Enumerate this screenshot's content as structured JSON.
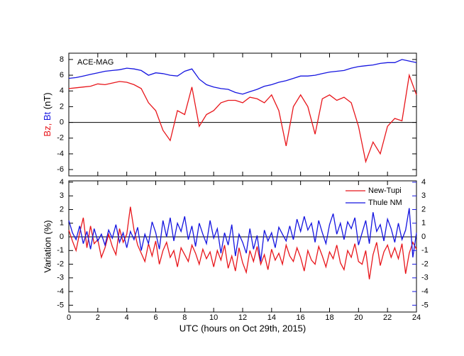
{
  "chart_data": [
    {
      "type": "line",
      "annotation": "ACE-MAG",
      "ylabel": [
        "Bz,",
        "Bt",
        "(nT)"
      ],
      "xlim": [
        0,
        24
      ],
      "xticks": [
        0,
        2,
        4,
        6,
        8,
        10,
        12,
        14,
        16,
        18,
        20,
        22,
        24
      ],
      "ylim": [
        -6.8,
        8.8
      ],
      "yticks": [
        -6,
        -4,
        -2,
        0,
        2,
        4,
        6,
        8
      ],
      "hline": 0,
      "x": [
        0,
        0.5,
        1,
        1.5,
        2,
        2.5,
        3,
        3.5,
        4,
        4.5,
        5,
        5.5,
        6,
        6.5,
        7,
        7.5,
        8,
        8.5,
        9,
        9.5,
        10,
        10.5,
        11,
        11.5,
        12,
        12.5,
        13,
        13.5,
        14,
        14.5,
        15,
        15.5,
        16,
        16.5,
        17,
        17.5,
        18,
        18.5,
        19,
        19.5,
        20,
        20.5,
        21,
        21.5,
        22,
        22.5,
        23,
        23.5,
        24
      ],
      "series": [
        {
          "color": "#e8161b",
          "values": [
            4.3,
            4.4,
            4.5,
            4.6,
            4.9,
            4.8,
            5.0,
            5.2,
            5.1,
            4.8,
            4.3,
            2.5,
            1.5,
            -1.0,
            -2.3,
            1.5,
            1.0,
            4.5,
            -0.5,
            1.0,
            1.5,
            2.5,
            2.8,
            2.8,
            2.5,
            3.2,
            3.0,
            2.5,
            3.5,
            1.5,
            -3.0,
            2.0,
            3.5,
            2.0,
            -1.5,
            3.0,
            3.5,
            2.8,
            3.2,
            2.5,
            -0.5,
            -5.0,
            -2.5,
            -4.0,
            -0.5,
            0.5,
            0.2,
            6.0,
            3.5
          ]
        },
        {
          "color": "#1515e0",
          "values": [
            5.6,
            5.7,
            5.9,
            6.1,
            6.3,
            6.5,
            6.6,
            6.7,
            6.9,
            6.8,
            6.6,
            6.0,
            6.3,
            6.2,
            6.0,
            5.9,
            6.5,
            6.8,
            5.5,
            4.8,
            4.5,
            4.3,
            4.2,
            3.8,
            3.6,
            3.9,
            4.2,
            4.6,
            4.8,
            5.1,
            5.3,
            5.6,
            5.9,
            5.9,
            6.0,
            6.2,
            6.4,
            6.5,
            6.6,
            6.9,
            7.1,
            7.2,
            7.3,
            7.5,
            7.6,
            7.6,
            8.0,
            7.8,
            7.6
          ]
        }
      ]
    },
    {
      "type": "line",
      "ylabel": "Variation (%)",
      "xlabel": "UTC (hours on Oct 29th, 2015)",
      "xlim": [
        0,
        24
      ],
      "xticks": [
        0,
        2,
        4,
        6,
        8,
        10,
        12,
        14,
        16,
        18,
        20,
        22,
        24
      ],
      "ylim": [
        -5.5,
        4.1
      ],
      "yticks": [
        -5,
        -4,
        -3,
        -2,
        -1,
        0,
        1,
        2,
        3,
        4
      ],
      "y2lim": [
        -5.5,
        4.1
      ],
      "y2ticks": [
        -5,
        -4,
        -3,
        -2,
        -1,
        0,
        1,
        2,
        3,
        4
      ],
      "hline": 0,
      "legend": "upper right",
      "x": [
        0,
        0.25,
        0.5,
        0.75,
        1,
        1.25,
        1.5,
        1.75,
        2,
        2.25,
        2.5,
        2.75,
        3,
        3.25,
        3.5,
        3.75,
        4,
        4.25,
        4.5,
        4.75,
        5,
        5.25,
        5.5,
        5.75,
        6,
        6.25,
        6.5,
        6.75,
        7,
        7.25,
        7.5,
        7.75,
        8,
        8.25,
        8.5,
        8.75,
        9,
        9.25,
        9.5,
        9.75,
        10,
        10.25,
        10.5,
        10.75,
        11,
        11.25,
        11.5,
        11.75,
        12,
        12.25,
        12.5,
        12.75,
        13,
        13.25,
        13.5,
        13.75,
        14,
        14.25,
        14.5,
        14.75,
        15,
        15.25,
        15.5,
        15.75,
        16,
        16.25,
        16.5,
        16.75,
        17,
        17.25,
        17.5,
        17.75,
        18,
        18.25,
        18.5,
        18.75,
        19,
        19.25,
        19.5,
        19.75,
        20,
        20.25,
        20.5,
        20.75,
        21,
        21.25,
        21.5,
        21.75,
        22,
        22.25,
        22.5,
        22.75,
        23,
        23.25,
        23.5,
        23.75,
        24
      ],
      "series": [
        {
          "name": "New-Tupi",
          "color": "#e8161b",
          "values": [
            0.5,
            -0.3,
            -1.0,
            0.3,
            1.4,
            -0.8,
            0.8,
            -0.5,
            -0.2,
            -1.5,
            -0.8,
            0.2,
            -0.7,
            -1.3,
            0.6,
            -0.4,
            0.2,
            2.2,
            0.5,
            -0.6,
            -1.2,
            -1.8,
            -0.5,
            -1.4,
            -0.3,
            -2.0,
            -1.0,
            -0.4,
            -1.5,
            -1.0,
            -2.2,
            -0.8,
            -1.3,
            -1.8,
            -0.6,
            -1.2,
            -2.0,
            -0.9,
            -1.6,
            -1.1,
            -2.2,
            -1.0,
            -1.7,
            -0.6,
            -2.3,
            -1.4,
            -2.5,
            -0.8,
            -1.9,
            -2.6,
            -1.0,
            -1.8,
            -0.7,
            -2.0,
            -1.3,
            -2.4,
            -0.9,
            -1.7,
            -1.2,
            -2.0,
            -0.6,
            -1.4,
            -1.8,
            -0.8,
            -1.5,
            -2.5,
            -1.0,
            -1.7,
            -2.0,
            -0.7,
            -1.4,
            -2.2,
            -1.1,
            -1.6,
            -0.6,
            -1.9,
            -2.4,
            -1.0,
            -1.5,
            -0.5,
            -1.8,
            -2.0,
            -1.0,
            -3.1,
            -1.3,
            -0.4,
            -2.1,
            -1.1,
            -0.6,
            -1.5,
            -0.8,
            -1.6,
            -0.5,
            -2.7,
            -1.2,
            -0.4,
            -0.9
          ]
        },
        {
          "name": "Thule NM",
          "color": "#1515e0",
          "axis": "y2",
          "values": [
            1.2,
            0.3,
            -0.2,
            0.8,
            -0.5,
            0.4,
            -0.9,
            0.6,
            -0.3,
            0.2,
            -0.6,
            0.5,
            -0.1,
            0.9,
            -0.4,
            0.3,
            -0.8,
            0.4,
            -0.2,
            0.7,
            -1.0,
            0.2,
            -0.5,
            1.1,
            0.3,
            -0.9,
            1.2,
            0.0,
            1.4,
            -0.3,
            1.0,
            0.4,
            1.5,
            -0.2,
            0.8,
            -0.7,
            1.0,
            0.2,
            -0.5,
            1.2,
            -0.1,
            0.6,
            -1.2,
            0.3,
            -0.6,
            0.9,
            -1.4,
            0.2,
            -0.4,
            -1.2,
            0.6,
            -0.9,
            0.1,
            -1.8,
            0.5,
            -0.3,
            0.3,
            -0.8,
            0.7,
            0.2,
            -0.3,
            0.8,
            -0.2,
            1.3,
            0.4,
            1.5,
            0.5,
            1.0,
            -0.4,
            1.2,
            0.3,
            -0.5,
            0.9,
            1.7,
            0.2,
            1.0,
            -0.2,
            1.1,
            0.6,
            1.4,
            -0.6,
            0.3,
            1.2,
            -0.5,
            1.8,
            0.4,
            0.9,
            -0.3,
            1.3,
            0.6,
            -0.4,
            1.0,
            -0.2,
            0.5,
            2.1,
            -1.5,
            0.3
          ]
        }
      ]
    }
  ]
}
